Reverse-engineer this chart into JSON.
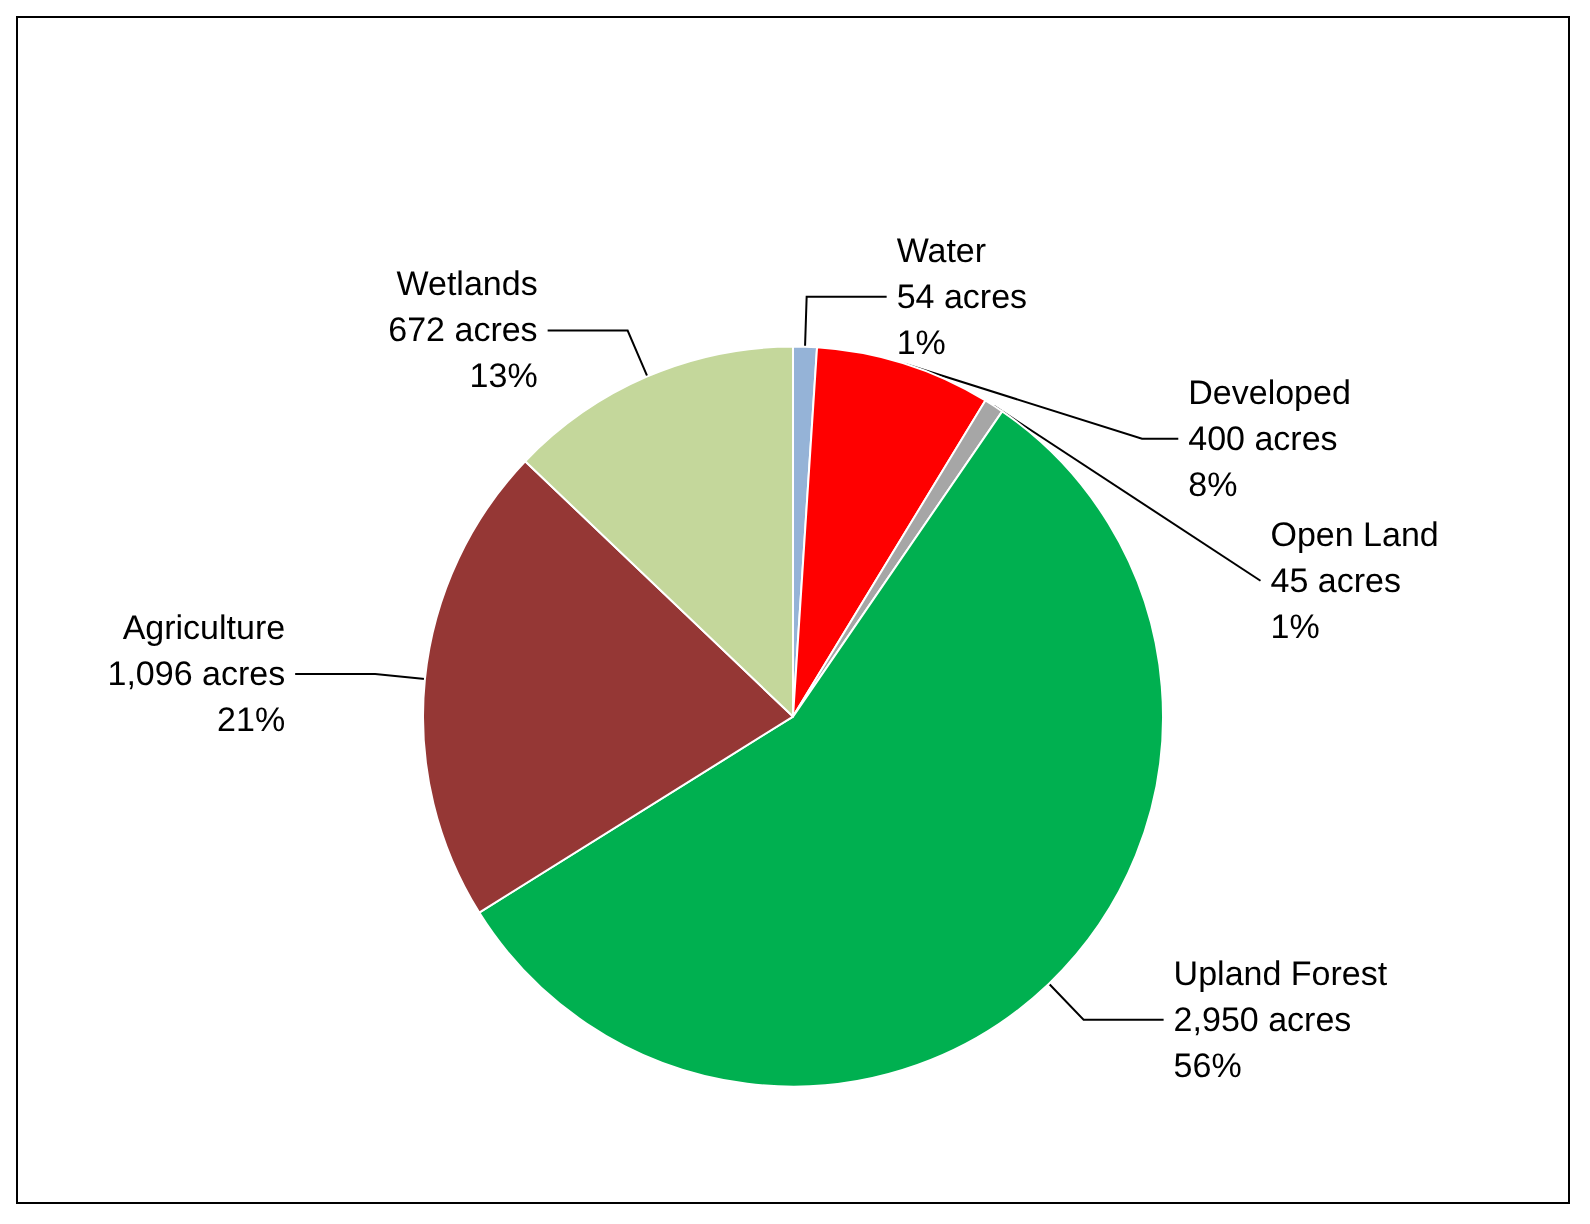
{
  "chart_data": {
    "type": "pie",
    "categories": [
      "Water",
      "Developed",
      "Open Land",
      "Upland Forest",
      "Agriculture",
      "Wetlands"
    ],
    "values": [
      54,
      400,
      45,
      2950,
      1096,
      672
    ],
    "value_labels": [
      "54 acres\n1%",
      "400 acres\n8%",
      "45 acres\n1%",
      "2,950 acres\n56%",
      "1,096 acres\n21%",
      "672 acres\n13%"
    ],
    "colors": [
      "#95b3d7",
      "#ff0000",
      "#a6a6a6",
      "#00b050",
      "#953735",
      "#c4d79b"
    ],
    "legend": false
  }
}
